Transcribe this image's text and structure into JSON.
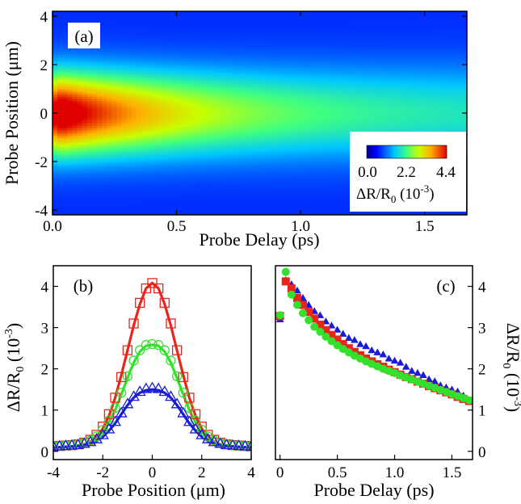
{
  "colors": {
    "red": "#e8261d",
    "green": "#33e02b",
    "blue": "#1a1adb",
    "map_low": "#0000c8",
    "map_mid": "#4cff4c",
    "map_high": "#e80000"
  },
  "chart_data": [
    {
      "id": "a",
      "type": "heatmap",
      "panel_label": "(a)",
      "xlabel": "Probe Delay (ps)",
      "ylabel": "Probe Position (μm)",
      "xlim": [
        0,
        1.67
      ],
      "ylim": [
        -4.2,
        4.2
      ],
      "xticks": [
        "0.0",
        "0.5",
        "1.0",
        "1.5"
      ],
      "yticks": [
        "-4",
        "-2",
        "0",
        "2",
        "4"
      ],
      "colorbar": {
        "range": [
          0.0,
          4.4
        ],
        "tick_labels": [
          "0.0",
          "2.2",
          "4.4"
        ],
        "label_main": "ΔR/R",
        "label_sub": "0",
        "label_unit": " (10",
        "label_exp": "-3",
        "label_close": ")",
        "placement": "lower-right"
      }
    },
    {
      "id": "b",
      "type": "scatter",
      "panel_label": "(b)",
      "xlabel": "Probe Position (μm)",
      "ylabel_main": "ΔR/R",
      "ylabel_sub": "0",
      "ylabel_unit": " (10",
      "ylabel_exp": "-3",
      "ylabel_close": ")",
      "xlim": [
        -4,
        4
      ],
      "ylim": [
        -0.2,
        4.5
      ],
      "xticks": [
        "-4",
        "-2",
        "0",
        "2",
        "4"
      ],
      "yticks": [
        "0",
        "1",
        "2",
        "3",
        "4"
      ],
      "x": [
        -4.0,
        -3.75,
        -3.5,
        -3.25,
        -3.0,
        -2.75,
        -2.5,
        -2.25,
        -2.0,
        -1.75,
        -1.5,
        -1.25,
        -1.0,
        -0.75,
        -0.5,
        -0.25,
        0.0,
        0.25,
        0.5,
        0.75,
        1.0,
        1.25,
        1.5,
        1.75,
        2.0,
        2.25,
        2.5,
        2.75,
        3.0,
        3.25,
        3.5,
        3.75,
        4.0
      ],
      "series": [
        {
          "marker": "square",
          "values": [
            0.12,
            0.13,
            0.14,
            0.15,
            0.17,
            0.21,
            0.28,
            0.4,
            0.6,
            0.9,
            1.3,
            1.8,
            2.45,
            3.1,
            3.6,
            3.95,
            4.08,
            3.95,
            3.6,
            3.1,
            2.45,
            1.8,
            1.3,
            0.9,
            0.6,
            0.4,
            0.28,
            0.21,
            0.17,
            0.15,
            0.14,
            0.13,
            0.12
          ],
          "fit": [
            0.1,
            0.1,
            0.11,
            0.12,
            0.14,
            0.17,
            0.23,
            0.35,
            0.55,
            0.86,
            1.3,
            1.85,
            2.45,
            3.05,
            3.57,
            3.95,
            4.08,
            3.95,
            3.57,
            3.05,
            2.45,
            1.85,
            1.3,
            0.86,
            0.55,
            0.35,
            0.23,
            0.17,
            0.14,
            0.12,
            0.11,
            0.1,
            0.1
          ]
        },
        {
          "marker": "circle",
          "values": [
            0.12,
            0.13,
            0.14,
            0.15,
            0.17,
            0.2,
            0.26,
            0.36,
            0.52,
            0.75,
            1.05,
            1.42,
            1.82,
            2.2,
            2.45,
            2.58,
            2.6,
            2.58,
            2.45,
            2.2,
            1.82,
            1.42,
            1.05,
            0.75,
            0.52,
            0.36,
            0.26,
            0.2,
            0.17,
            0.15,
            0.14,
            0.13,
            0.12
          ],
          "fit": [
            0.1,
            0.1,
            0.11,
            0.12,
            0.14,
            0.17,
            0.22,
            0.31,
            0.47,
            0.7,
            1.0,
            1.38,
            1.78,
            2.15,
            2.42,
            2.56,
            2.58,
            2.56,
            2.42,
            2.15,
            1.78,
            1.38,
            1.0,
            0.7,
            0.47,
            0.31,
            0.22,
            0.17,
            0.14,
            0.12,
            0.11,
            0.1,
            0.1
          ]
        },
        {
          "marker": "triangle",
          "values": [
            0.12,
            0.13,
            0.14,
            0.15,
            0.16,
            0.19,
            0.23,
            0.3,
            0.4,
            0.54,
            0.72,
            0.93,
            1.15,
            1.33,
            1.45,
            1.52,
            1.54,
            1.52,
            1.45,
            1.33,
            1.15,
            0.93,
            0.72,
            0.54,
            0.4,
            0.3,
            0.23,
            0.19,
            0.16,
            0.15,
            0.14,
            0.13,
            0.12
          ],
          "fit": [
            0.1,
            0.1,
            0.11,
            0.12,
            0.13,
            0.15,
            0.19,
            0.25,
            0.35,
            0.5,
            0.68,
            0.9,
            1.12,
            1.3,
            1.42,
            1.48,
            1.5,
            1.48,
            1.42,
            1.3,
            1.12,
            0.9,
            0.68,
            0.5,
            0.35,
            0.25,
            0.19,
            0.15,
            0.13,
            0.12,
            0.11,
            0.1,
            0.1
          ]
        }
      ]
    },
    {
      "id": "c",
      "type": "scatter",
      "panel_label": "(c)",
      "xlabel": "Probe Delay (ps)",
      "ylabel_main": "ΔR/R",
      "ylabel_sub": "0",
      "ylabel_unit": " (10",
      "ylabel_exp": "-3",
      "ylabel_close": ")",
      "xlim": [
        -0.04,
        1.68
      ],
      "ylim": [
        -0.2,
        4.5
      ],
      "xticks": [
        "0",
        "0.5",
        "1.0",
        "1.5"
      ],
      "yticks": [
        "0",
        "1",
        "2",
        "3",
        "4"
      ],
      "series": [
        {
          "marker": "square",
          "x": [
            0.0,
            0.05,
            0.1,
            0.15,
            0.2,
            0.25,
            0.3,
            0.35,
            0.4,
            0.45,
            0.5,
            0.55,
            0.6,
            0.65,
            0.7,
            0.75,
            0.8,
            0.85,
            0.9,
            0.95,
            1.0,
            1.05,
            1.1,
            1.15,
            1.2,
            1.25,
            1.3,
            1.35,
            1.4,
            1.45,
            1.5,
            1.55,
            1.6,
            1.65
          ],
          "values": [
            3.28,
            4.12,
            3.95,
            3.72,
            3.55,
            3.38,
            3.22,
            3.07,
            2.94,
            2.82,
            2.71,
            2.6,
            2.5,
            2.41,
            2.33,
            2.25,
            2.18,
            2.11,
            2.05,
            1.98,
            1.92,
            1.86,
            1.8,
            1.75,
            1.69,
            1.64,
            1.58,
            1.53,
            1.48,
            1.43,
            1.38,
            1.32,
            1.27,
            1.22
          ]
        },
        {
          "marker": "circle",
          "x": [
            0.0,
            0.05,
            0.1,
            0.15,
            0.2,
            0.25,
            0.3,
            0.35,
            0.4,
            0.45,
            0.5,
            0.55,
            0.6,
            0.65,
            0.7,
            0.75,
            0.8,
            0.85,
            0.9,
            0.95,
            1.0,
            1.05,
            1.1,
            1.15,
            1.2,
            1.25,
            1.3,
            1.35,
            1.4,
            1.45,
            1.5,
            1.55,
            1.6,
            1.65
          ],
          "values": [
            3.3,
            4.35,
            3.8,
            3.55,
            3.35,
            3.18,
            3.02,
            2.9,
            2.78,
            2.67,
            2.57,
            2.48,
            2.4,
            2.32,
            2.25,
            2.18,
            2.12,
            2.06,
            2.0,
            1.95,
            1.9,
            1.84,
            1.79,
            1.74,
            1.69,
            1.64,
            1.59,
            1.54,
            1.49,
            1.44,
            1.39,
            1.34,
            1.29,
            1.24
          ]
        },
        {
          "marker": "triangle",
          "x": [
            0.0,
            0.05,
            0.1,
            0.15,
            0.2,
            0.25,
            0.3,
            0.35,
            0.4,
            0.45,
            0.5,
            0.55,
            0.6,
            0.65,
            0.7,
            0.75,
            0.8,
            0.85,
            0.9,
            0.95,
            1.0,
            1.05,
            1.1,
            1.15,
            1.2,
            1.25,
            1.3,
            1.35,
            1.4,
            1.45,
            1.5,
            1.55,
            1.6,
            1.65
          ],
          "values": [
            3.2,
            4.15,
            4.05,
            3.9,
            3.72,
            3.55,
            3.4,
            3.3,
            3.15,
            3.05,
            2.95,
            2.85,
            2.75,
            2.7,
            2.6,
            2.55,
            2.45,
            2.4,
            2.35,
            2.25,
            2.2,
            2.15,
            2.05,
            1.95,
            1.9,
            1.85,
            1.75,
            1.7,
            1.6,
            1.55,
            1.5,
            1.45,
            1.35,
            1.25
          ]
        }
      ]
    }
  ]
}
